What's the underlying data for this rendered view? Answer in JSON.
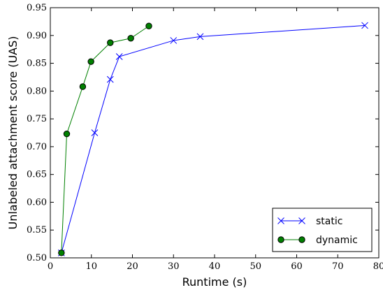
{
  "chart_data": {
    "type": "line",
    "xlabel": "Runtime (s)",
    "ylabel": "Unlabeled attachment score (UAS)",
    "xlim": [
      0,
      80
    ],
    "ylim": [
      0.5,
      0.95
    ],
    "x_ticks": [
      "0",
      "10",
      "20",
      "30",
      "40",
      "50",
      "60",
      "70",
      "80"
    ],
    "y_ticks": [
      "0.50",
      "0.55",
      "0.60",
      "0.65",
      "0.70",
      "0.75",
      "0.80",
      "0.85",
      "0.90",
      "0.95"
    ],
    "grid": false,
    "legend_position": "lower-right",
    "series": [
      {
        "name": "static",
        "color": "#0000ff",
        "marker": "x",
        "points": [
          [
            2.7,
            0.509
          ],
          [
            10.8,
            0.725
          ],
          [
            14.6,
            0.821
          ],
          [
            16.8,
            0.862
          ],
          [
            30.0,
            0.891
          ],
          [
            36.5,
            0.898
          ],
          [
            76.6,
            0.918
          ]
        ]
      },
      {
        "name": "dynamic",
        "color": "#008000",
        "marker": "circle",
        "points": [
          [
            2.7,
            0.509
          ],
          [
            4.0,
            0.723
          ],
          [
            7.9,
            0.808
          ],
          [
            9.9,
            0.853
          ],
          [
            14.6,
            0.887
          ],
          [
            19.6,
            0.895
          ],
          [
            24.0,
            0.917
          ]
        ]
      }
    ]
  }
}
